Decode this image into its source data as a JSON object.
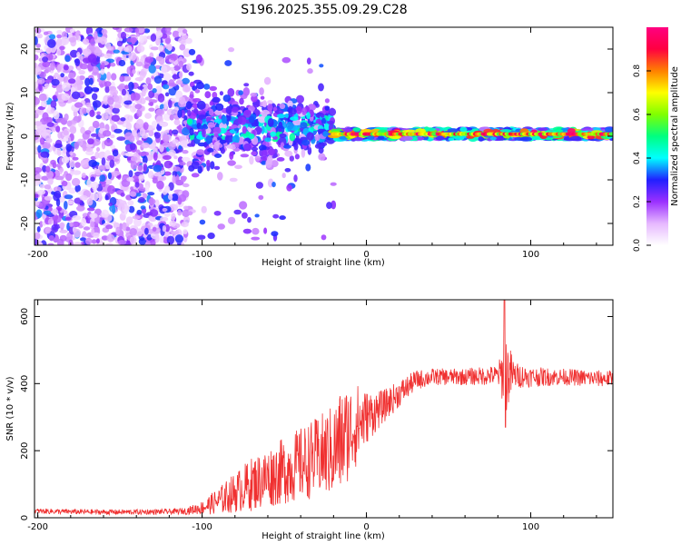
{
  "title": "S196.2025.355.09.29.C28",
  "colors": {
    "background": "#ffffff",
    "axis": "#000000",
    "snr_line": "#f03030"
  },
  "chart_data": [
    {
      "type": "heatmap",
      "name": "spectrogram",
      "xlabel": "Height of straight line (km)",
      "ylabel": "Frequency (Hz)",
      "xlim": [
        -202,
        150
      ],
      "ylim": [
        -25,
        25
      ],
      "xticks": [
        -200,
        -100,
        0,
        100
      ],
      "xtick_labels": [
        "-200",
        "-100",
        "0",
        "100"
      ],
      "yticks": [
        -20,
        -10,
        0,
        10,
        20
      ],
      "ytick_labels": [
        "-20",
        "-10",
        "0",
        "10",
        "20"
      ],
      "colorbar": {
        "label": "Normalized spectral amplitude",
        "range": [
          0,
          1
        ],
        "ticks": [
          0.0,
          0.2,
          0.4,
          0.6,
          0.8
        ],
        "tick_labels": [
          "0.0",
          "0.2",
          "0.4",
          "0.6",
          "0.8"
        ],
        "colormap": [
          "#ffffff",
          "#e6b8ff",
          "#9b30ff",
          "#2020ff",
          "#00ffff",
          "#00ff80",
          "#80ff00",
          "#ffff00",
          "#ff8000",
          "#ff0040",
          "#ff0080"
        ]
      },
      "regions": [
        {
          "x_range": [
            -202,
            -108
          ],
          "description_level": "noise",
          "freq_spread": 25,
          "amplitude": 0.15
        },
        {
          "x_range": [
            -108,
            -20
          ],
          "description_level": "transition",
          "freq_center": 2,
          "freq_spread": 8,
          "amplitude": 0.3
        },
        {
          "x_range": [
            -20,
            150
          ],
          "description_level": "signal",
          "freq_center": 0.5,
          "freq_spread": 1.2,
          "amplitude": 0.9
        }
      ]
    },
    {
      "type": "line",
      "name": "snr",
      "xlabel": "Height of straight line (km)",
      "ylabel": "SNR (10 * v/v)",
      "xlim": [
        -202,
        150
      ],
      "ylim": [
        0,
        650
      ],
      "xticks": [
        -200,
        -100,
        0,
        100
      ],
      "xtick_labels": [
        "-200",
        "-100",
        "0",
        "100"
      ],
      "yticks": [
        0,
        200,
        400,
        600
      ],
      "ytick_labels": [
        "0",
        "200",
        "400",
        "600"
      ],
      "series": [
        {
          "name": "SNR",
          "color": "#f03030",
          "x": [
            -202,
            -180,
            -160,
            -140,
            -120,
            -110,
            -100,
            -90,
            -80,
            -70,
            -60,
            -50,
            -40,
            -30,
            -20,
            -15,
            -10,
            -5,
            0,
            10,
            20,
            30,
            40,
            60,
            80,
            85,
            90,
            100,
            120,
            140,
            150
          ],
          "y": [
            20,
            18,
            17,
            17,
            18,
            20,
            30,
            50,
            75,
            100,
            120,
            140,
            160,
            180,
            200,
            230,
            260,
            280,
            300,
            330,
            370,
            410,
            420,
            420,
            425,
            430,
            425,
            420,
            420,
            415,
            415
          ],
          "noise": [
            8,
            8,
            8,
            8,
            8,
            10,
            20,
            40,
            60,
            80,
            90,
            100,
            110,
            120,
            140,
            160,
            140,
            120,
            80,
            50,
            40,
            30,
            25,
            25,
            30,
            120,
            40,
            30,
            25,
            25,
            25
          ]
        }
      ]
    }
  ]
}
